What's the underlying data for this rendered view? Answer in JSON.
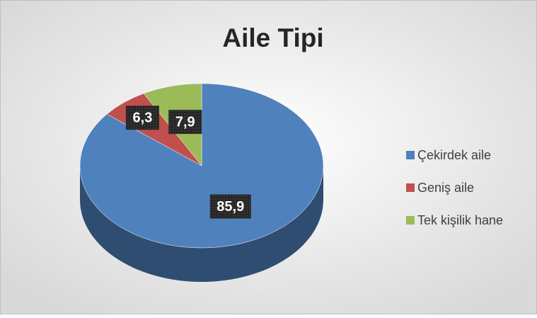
{
  "chart_data": {
    "type": "pie",
    "title": "Aile Tipi",
    "categories": [
      "Çekirdek aile",
      "Geniş aile",
      "Tek kişilik hane"
    ],
    "values": [
      85.9,
      6.3,
      7.9
    ],
    "value_labels": [
      "85,9",
      "6,3",
      "7,9"
    ],
    "colors": [
      "#4f81bd",
      "#c0504d",
      "#9bbb59"
    ],
    "legend": "right"
  }
}
